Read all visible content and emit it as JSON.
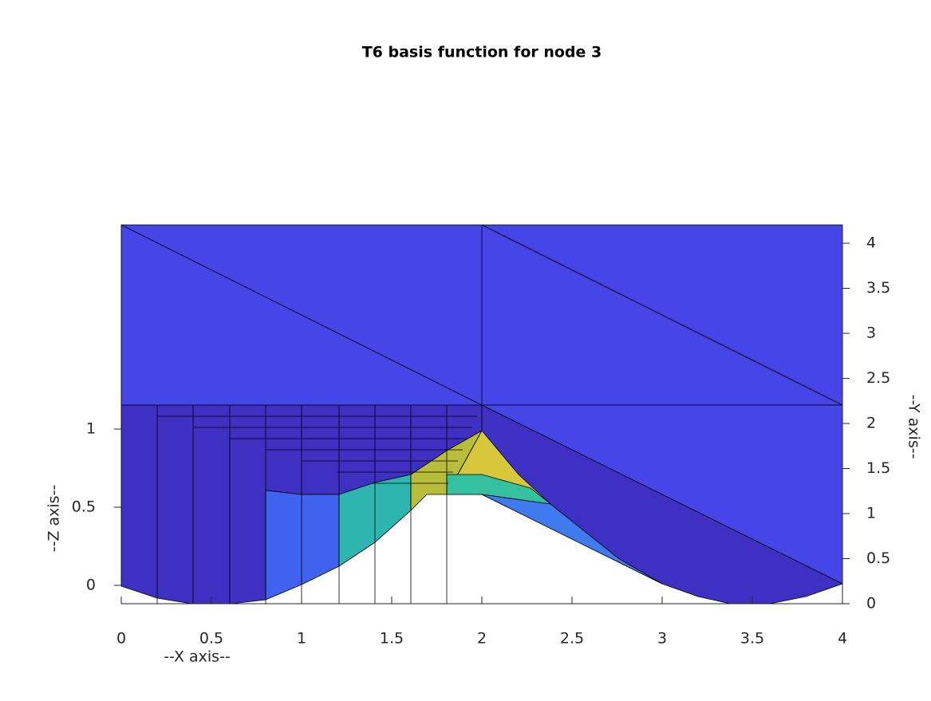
{
  "chart_data": {
    "type": "surface",
    "title": "T6 basis function for node 3",
    "xlabel": "--X axis--",
    "ylabel": "--Y axis--",
    "zlabel": "--Z axis--",
    "xlim": [
      0,
      4
    ],
    "xticks": [
      0,
      0.5,
      1,
      1.5,
      2,
      2.5,
      3,
      3.5,
      4
    ],
    "ylim": [
      0,
      4
    ],
    "yticks": [
      0,
      0.5,
      1,
      1.5,
      2,
      2.5,
      3,
      3.5,
      4
    ],
    "zlim": [
      0,
      1
    ],
    "zticks": [
      0,
      0.5,
      1
    ]
  }
}
